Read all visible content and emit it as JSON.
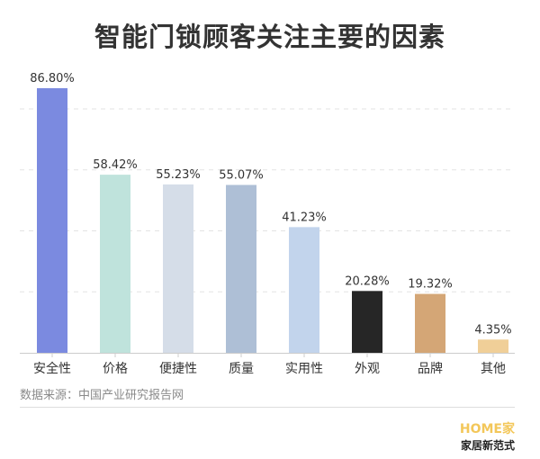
{
  "chart_data": {
    "type": "bar",
    "title": "智能门锁顾客关注主要的因素",
    "categories": [
      "安全性",
      "价格",
      "便捷性",
      "质量",
      "实用性",
      "外观",
      "品牌",
      "其他"
    ],
    "values": [
      86.8,
      58.42,
      55.23,
      55.07,
      41.23,
      20.28,
      19.32,
      4.35
    ],
    "data_labels": [
      "86.80%",
      "58.42%",
      "55.23%",
      "55.07%",
      "41.23%",
      "20.28%",
      "19.32%",
      "4.35%"
    ],
    "colors": [
      "#7b8ae0",
      "#bfe3dc",
      "#d5dde8",
      "#aebfd6",
      "#c2d4ec",
      "#262626",
      "#d4a676",
      "#f0cf98"
    ],
    "unit": "%",
    "ylim": [
      0,
      90
    ],
    "gridlines": [
      20,
      40,
      60,
      80
    ],
    "grid": true,
    "xlabel": "",
    "ylabel": ""
  },
  "source": "数据来源：中国产业研究报告网",
  "watermark": {
    "line1": "HOME家",
    "line2": "家居新范式"
  }
}
